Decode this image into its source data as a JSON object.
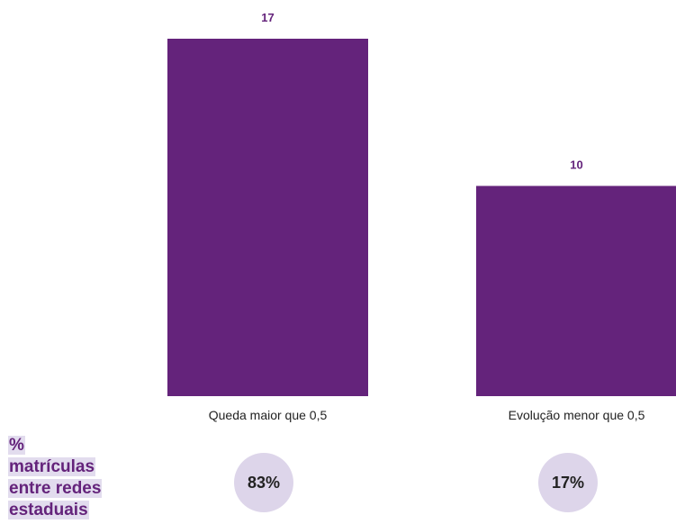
{
  "chart_data": {
    "type": "bar",
    "categories": [
      "Queda maior que 0,5",
      "Evolução menor que 0,5"
    ],
    "values": [
      17,
      10
    ],
    "data_labels": [
      "17",
      "10"
    ],
    "title": "",
    "xlabel": "",
    "ylabel": "",
    "ylim": [
      0,
      17
    ],
    "grid": false,
    "legend": "none"
  },
  "side_label": {
    "lines": [
      "%",
      "matrículas",
      "entre redes",
      "estaduais"
    ]
  },
  "shares": [
    {
      "category": "Queda maior que 0,5",
      "label": "83%"
    },
    {
      "category": "Evolução menor que 0,5",
      "label": "17%"
    }
  ],
  "colors": {
    "bar": "#64237b",
    "value_label": "#64237b",
    "side_label_text": "#64237b",
    "side_label_highlight": "#e2dcee",
    "circle": "#ddd5ea",
    "category_text": "#222222"
  }
}
